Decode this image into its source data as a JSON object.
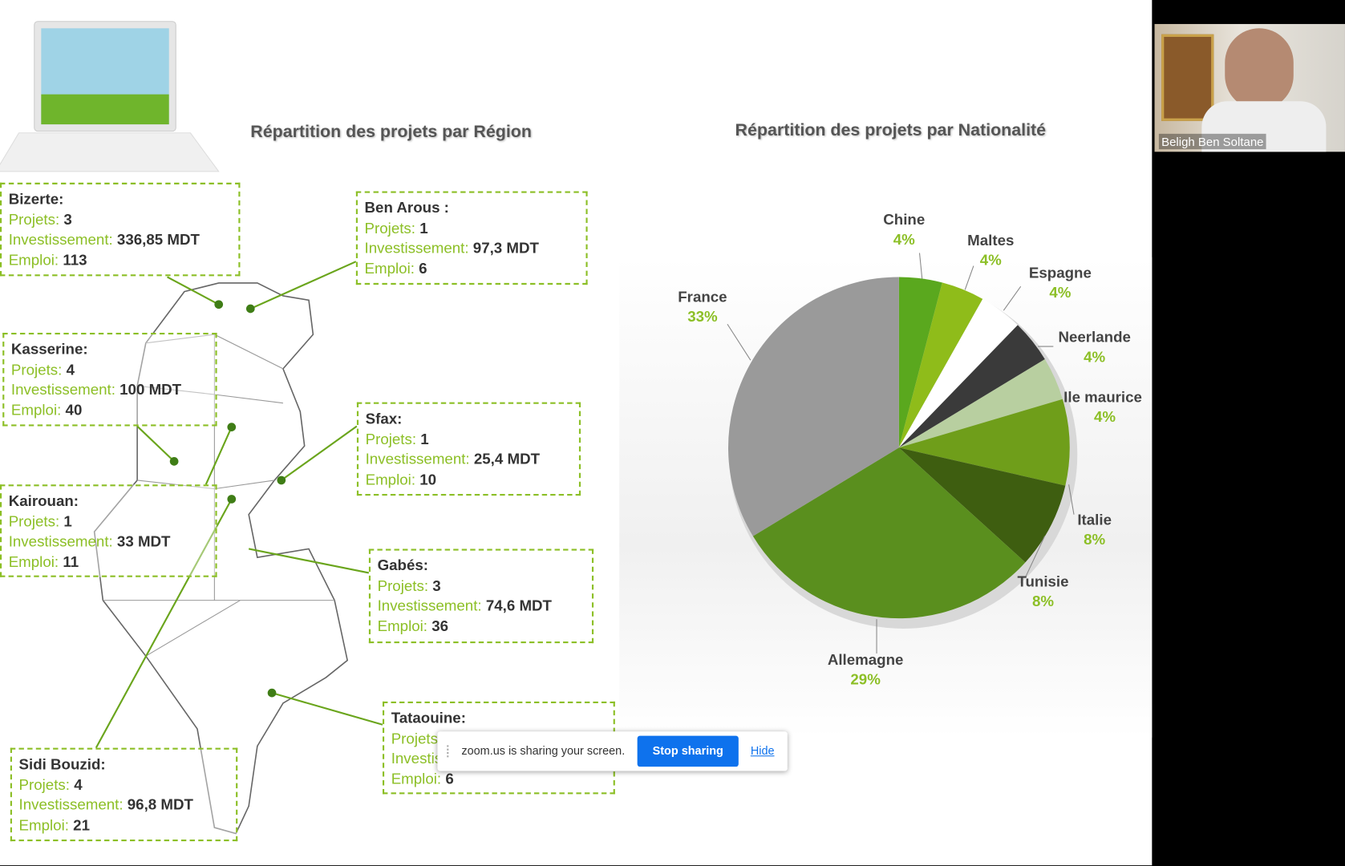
{
  "slide": {
    "region_title": "Répartition des projets par Région",
    "nationality_title": "Répartition des projets par Nationalité",
    "regions": [
      {
        "name": "Bizerte:",
        "rows": [
          {
            "label": "Projets:",
            "value": "3"
          },
          {
            "label": "Investissement:",
            "value": "336,85 MDT"
          },
          {
            "label": "Emploi:",
            "value": "113"
          }
        ]
      },
      {
        "name": "Ben Arous :",
        "rows": [
          {
            "label": "Projets:",
            "value": "1"
          },
          {
            "label": "Investissement:",
            "value": "97,3 MDT"
          },
          {
            "label": "Emploi:",
            "value": "6"
          }
        ]
      },
      {
        "name": "Kasserine:",
        "rows": [
          {
            "label": "Projets:",
            "value": "4"
          },
          {
            "label": "Investissement:",
            "value": "100 MDT"
          },
          {
            "label": "Emploi:",
            "value": "40"
          }
        ]
      },
      {
        "name": "Sfax:",
        "rows": [
          {
            "label": "Projets:",
            "value": "1"
          },
          {
            "label": "Investissement:",
            "value": "25,4 MDT"
          },
          {
            "label": "Emploi:",
            "value": "10"
          }
        ]
      },
      {
        "name": "Kairouan:",
        "rows": [
          {
            "label": "Projets:",
            "value": "1"
          },
          {
            "label": "Investissement:",
            "value": "33 MDT"
          },
          {
            "label": "Emploi:",
            "value": "11"
          }
        ]
      },
      {
        "name": "Gabés:",
        "rows": [
          {
            "label": "Projets:",
            "value": "3"
          },
          {
            "label": "Investissement:",
            "value": "74,6 MDT"
          },
          {
            "label": "Emploi:",
            "value": "36"
          }
        ]
      },
      {
        "name": "Tataouine:",
        "rows": [
          {
            "label": "Projets:"
          },
          {
            "label": "Investissement:"
          },
          {
            "label": "Emploi:",
            "value": "6"
          }
        ]
      },
      {
        "name": "Sidi Bouzid:",
        "rows": [
          {
            "label": "Projets:",
            "value": "4"
          },
          {
            "label": "Investissement:",
            "value": "96,8 MDT"
          },
          {
            "label": "Emploi:",
            "value": "21"
          }
        ]
      }
    ],
    "pie": {
      "type": "pie",
      "slices": [
        {
          "name": "Chine",
          "value": 4,
          "value_label": "4%",
          "color": "#5aa81e"
        },
        {
          "name": "Maltes",
          "value": 4,
          "value_label": "4%",
          "color": "#8fbc1a"
        },
        {
          "name": "Espagne",
          "value": 4,
          "value_label": "4%",
          "color": "#ffffff"
        },
        {
          "name": "Neerlande",
          "value": 4,
          "value_label": "4%",
          "color": "#3a3a3a"
        },
        {
          "name": "Ile maurice",
          "value": 4,
          "value_label": "4%",
          "color": "#b8cfa0"
        },
        {
          "name": "Italie",
          "value": 8,
          "value_label": "8%",
          "color": "#6f9e1a"
        },
        {
          "name": "Tunisie",
          "value": 8,
          "value_label": "8%",
          "color": "#3e5e10"
        },
        {
          "name": "Allemagne",
          "value": 29,
          "value_label": "29%",
          "color": "#5a8f1e"
        },
        {
          "name": "France",
          "value": 33,
          "value_label": "33%",
          "color": "#9a9a9a"
        }
      ]
    }
  },
  "zoom_bar": {
    "message": "zoom.us is sharing your screen.",
    "stop_button": "Stop sharing",
    "hide_link": "Hide"
  },
  "participant": {
    "name": "Beligh Ben Soltane"
  }
}
